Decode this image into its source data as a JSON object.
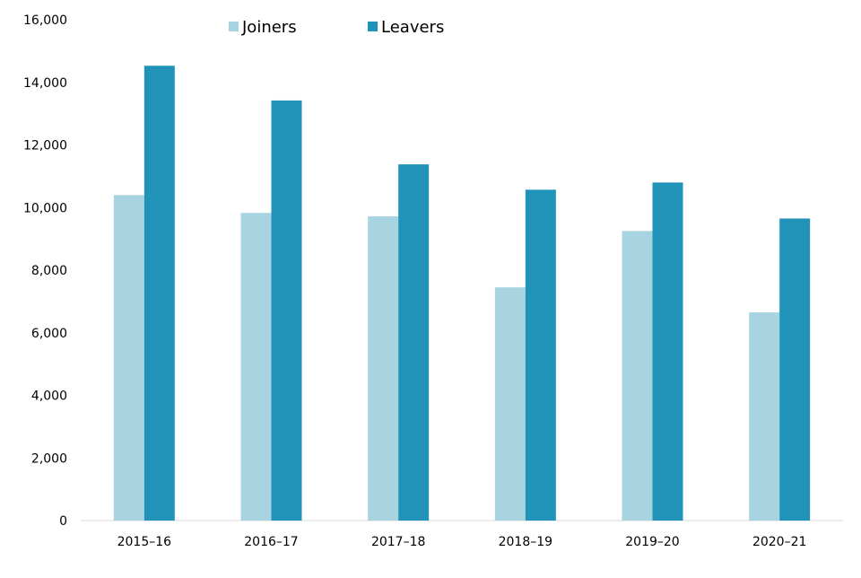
{
  "chart_data": {
    "type": "bar",
    "categories": [
      "2015–16",
      "2016–17",
      "2017–18",
      "2018–19",
      "2019–20",
      "2020–21"
    ],
    "series": [
      {
        "name": "Joiners",
        "color": "#a8d4e1",
        "values": [
          10400,
          9830,
          9720,
          7450,
          9250,
          6650
        ]
      },
      {
        "name": "Leavers",
        "color": "#2193b8",
        "values": [
          14530,
          13420,
          11380,
          10570,
          10800,
          9650
        ]
      }
    ],
    "y_ticks": [
      "0",
      "2,000",
      "4,000",
      "6,000",
      "8,000",
      "10,000",
      "12,000",
      "14,000",
      "16,000"
    ],
    "ylim": [
      0,
      16000
    ],
    "y_tick_step": 2000,
    "grid": false,
    "legend_position": "top-center",
    "title": "",
    "xlabel": "",
    "ylabel": ""
  }
}
